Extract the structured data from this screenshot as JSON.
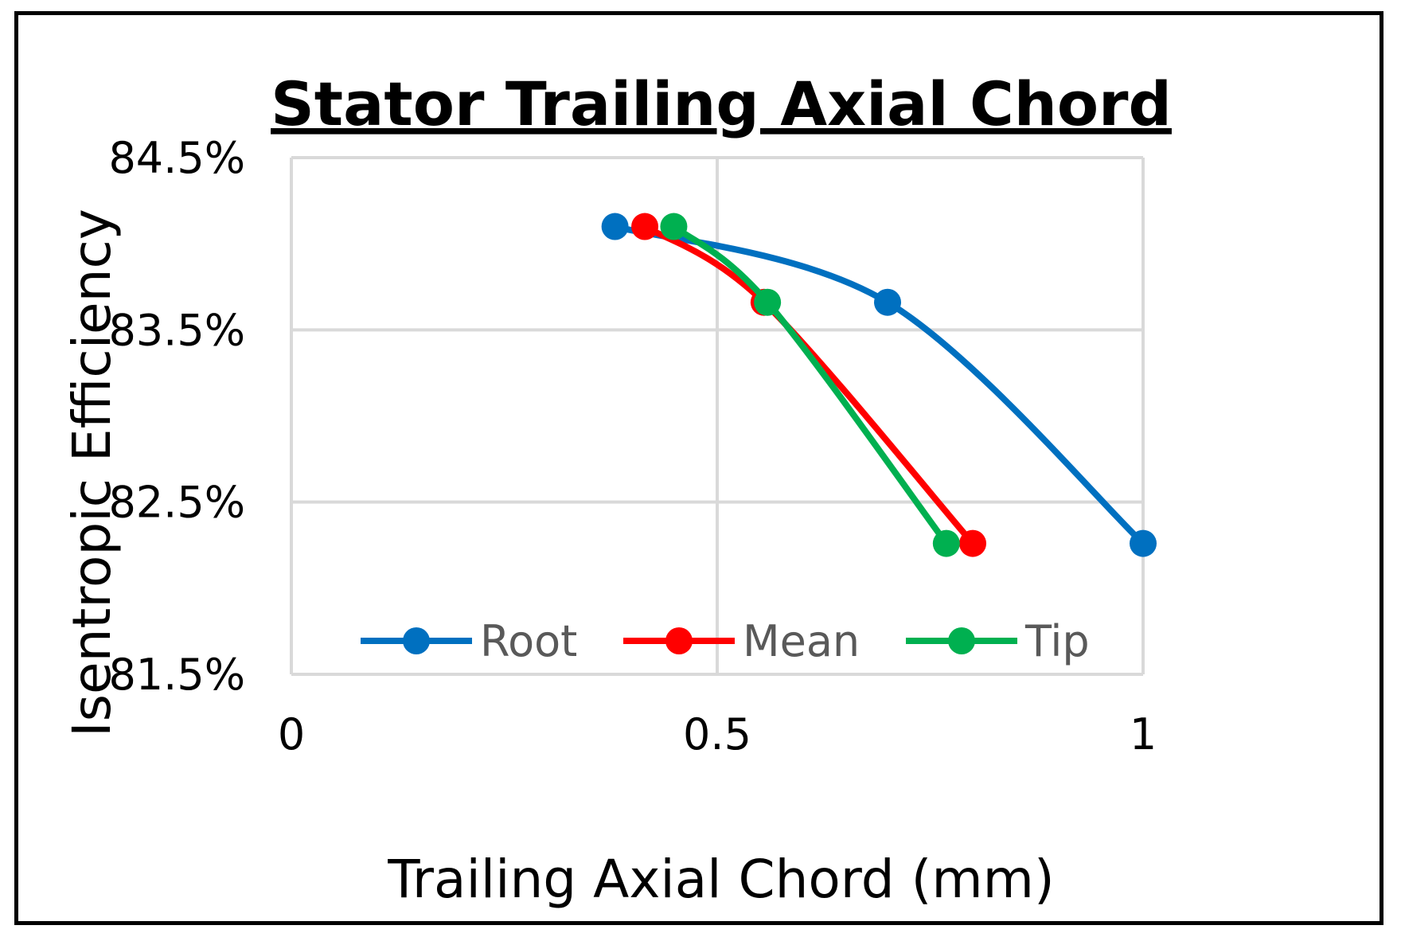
{
  "chart_data": {
    "type": "line",
    "title": "Stator Trailing Axial Chord",
    "xlabel": "Trailing Axial Chord (mm)",
    "ylabel": "Isentropic Efficiency",
    "xlim": [
      0,
      1
    ],
    "ylim": [
      81.5,
      84.5
    ],
    "xticks": [
      0,
      0.5,
      1
    ],
    "xtick_labels": [
      "0",
      "0.5",
      "1"
    ],
    "yticks": [
      81.5,
      82.5,
      83.5,
      84.5
    ],
    "ytick_labels": [
      "81.5%",
      "82.5%",
      "83.5%",
      "84.5%"
    ],
    "grid": true,
    "legend_position": "bottom-inside",
    "smooth": true,
    "series": [
      {
        "name": "Root",
        "color": "#0070C0",
        "x": [
          0.38,
          0.7,
          1.0
        ],
        "y": [
          84.1,
          83.66,
          82.26
        ]
      },
      {
        "name": "Mean",
        "color": "#FF0000",
        "x": [
          0.415,
          0.555,
          0.8
        ],
        "y": [
          84.1,
          83.66,
          82.26
        ]
      },
      {
        "name": "Tip",
        "color": "#00B050",
        "x": [
          0.449,
          0.559,
          0.769
        ],
        "y": [
          84.1,
          83.66,
          82.26
        ]
      }
    ]
  }
}
